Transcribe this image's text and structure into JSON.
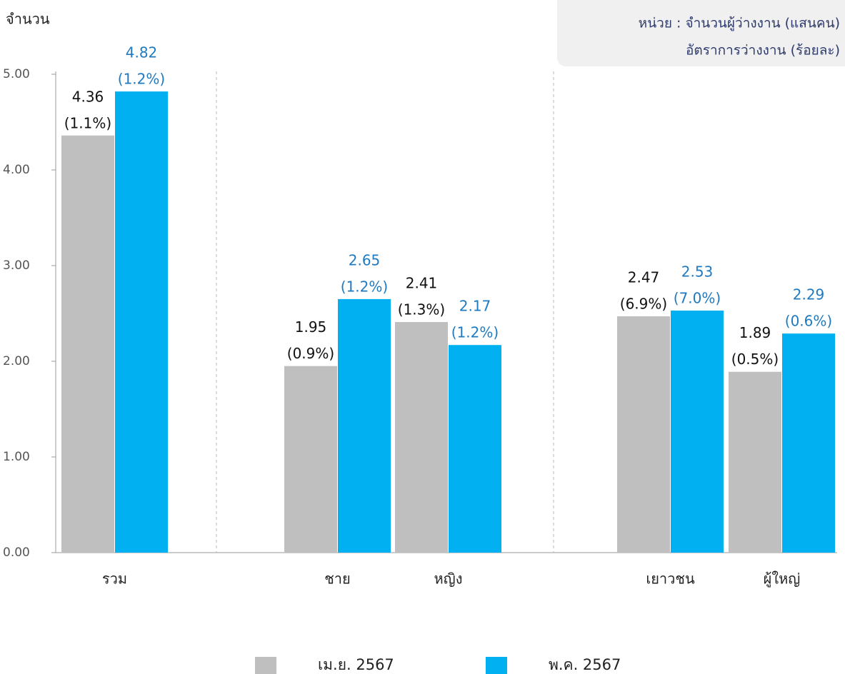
{
  "chart_data": {
    "type": "bar",
    "y_axis_label": "จำนวน",
    "unit_note": [
      "หน่วย : จำนวนผู้ว่างงาน (แสนคน)",
      "อัตราการว่างงาน (ร้อยละ)"
    ],
    "categories": [
      "รวม",
      "ชาย",
      "หญิง",
      "เยาวชน",
      "ผู้ใหญ่"
    ],
    "series": [
      {
        "name": "เม.ย. 2567",
        "color": "#bfbfbf",
        "label_color": "#111111",
        "values": [
          4.36,
          1.95,
          2.41,
          2.47,
          1.89
        ],
        "rate_labels": [
          "(1.1%)",
          "(0.9%)",
          "(1.3%)",
          "(6.9%)",
          "(0.5%)"
        ]
      },
      {
        "name": "พ.ค. 2567",
        "color": "#00b0f0",
        "label_color": "#1f7ac0",
        "values": [
          4.82,
          2.65,
          2.17,
          2.53,
          2.29
        ],
        "rate_labels": [
          "(1.2%)",
          "(1.2%)",
          "(1.2%)",
          "(7.0%)",
          "(0.6%)"
        ]
      }
    ],
    "ylim": [
      0,
      5
    ],
    "yticks": [
      {
        "value": 0,
        "label": "0.00"
      },
      {
        "value": 1,
        "label": "1.00"
      },
      {
        "value": 2,
        "label": "2.00"
      },
      {
        "value": 3,
        "label": "3.00"
      },
      {
        "value": 4,
        "label": "4.00"
      },
      {
        "value": 5,
        "label": "5.00"
      }
    ],
    "legend": "bottom"
  }
}
